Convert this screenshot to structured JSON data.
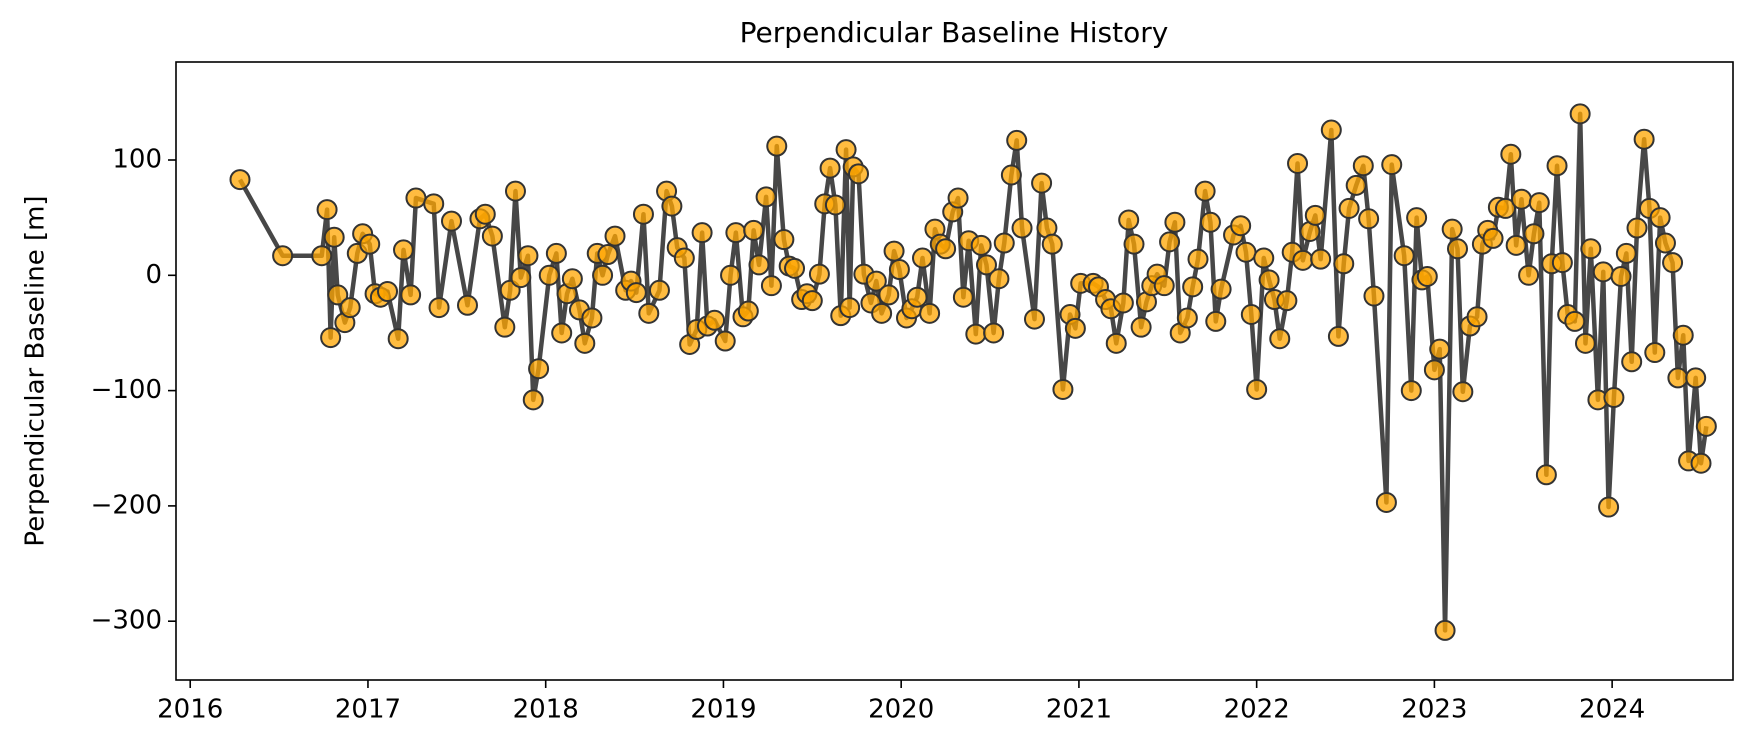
{
  "chart_data": {
    "type": "line",
    "title": "Perpendicular Baseline History",
    "y_label": "Perpendicular Baseline [m]",
    "color": "#333333",
    "marker_color": "#ffa500",
    "xlim": [
      2015.92,
      2024.68
    ],
    "xticks": [
      2016,
      2017,
      2018,
      2019,
      2020,
      2021,
      2022,
      2023,
      2024
    ],
    "ylim": [
      -351,
      185
    ],
    "yticks": [
      {
        "value": -300,
        "label": "−300"
      },
      {
        "value": -200,
        "label": "−200"
      },
      {
        "value": -100,
        "label": "−100"
      },
      0,
      100
    ],
    "x": [
      2016.28,
      2016.52,
      2016.74,
      2016.77,
      2016.79,
      2016.81,
      2016.83,
      2016.87,
      2016.9,
      2016.94,
      2016.97,
      2017.01,
      2017.04,
      2017.07,
      2017.11,
      2017.17,
      2017.2,
      2017.24,
      2017.27,
      2017.37,
      2017.4,
      2017.47,
      2017.56,
      2017.63,
      2017.66,
      2017.7,
      2017.77,
      2017.8,
      2017.83,
      2017.86,
      2017.9,
      2017.93,
      2017.96,
      2018.02,
      2018.06,
      2018.09,
      2018.12,
      2018.15,
      2018.19,
      2018.22,
      2018.26,
      2018.29,
      2018.32,
      2018.35,
      2018.39,
      2018.45,
      2018.48,
      2018.51,
      2018.55,
      2018.58,
      2018.64,
      2018.68,
      2018.71,
      2018.74,
      2018.78,
      2018.81,
      2018.85,
      2018.88,
      2018.91,
      2018.95,
      2019.01,
      2019.04,
      2019.07,
      2019.11,
      2019.14,
      2019.17,
      2019.2,
      2019.24,
      2019.27,
      2019.3,
      2019.34,
      2019.37,
      2019.4,
      2019.44,
      2019.47,
      2019.5,
      2019.54,
      2019.57,
      2019.6,
      2019.63,
      2019.66,
      2019.69,
      2019.71,
      2019.73,
      2019.76,
      2019.79,
      2019.83,
      2019.86,
      2019.89,
      2019.93,
      2019.96,
      2019.99,
      2020.03,
      2020.06,
      2020.09,
      2020.12,
      2020.16,
      2020.19,
      2020.22,
      2020.25,
      2020.29,
      2020.32,
      2020.35,
      2020.38,
      2020.42,
      2020.45,
      2020.48,
      2020.52,
      2020.55,
      2020.58,
      2020.62,
      2020.65,
      2020.68,
      2020.75,
      2020.79,
      2020.82,
      2020.85,
      2020.91,
      2020.95,
      2020.98,
      2021.01,
      2021.08,
      2021.11,
      2021.15,
      2021.18,
      2021.21,
      2021.25,
      2021.28,
      2021.31,
      2021.35,
      2021.38,
      2021.41,
      2021.44,
      2021.48,
      2021.51,
      2021.54,
      2021.57,
      2021.61,
      2021.64,
      2021.67,
      2021.71,
      2021.74,
      2021.77,
      2021.8,
      2021.87,
      2021.91,
      2021.94,
      2021.97,
      2022.0,
      2022.04,
      2022.07,
      2022.1,
      2022.13,
      2022.17,
      2022.2,
      2022.23,
      2022.26,
      2022.3,
      2022.33,
      2022.36,
      2022.42,
      2022.46,
      2022.49,
      2022.52,
      2022.56,
      2022.6,
      2022.63,
      2022.66,
      2022.73,
      2022.76,
      2022.83,
      2022.87,
      2022.9,
      2022.93,
      2022.96,
      2023.0,
      2023.03,
      2023.06,
      2023.1,
      2023.13,
      2023.16,
      2023.2,
      2023.24,
      2023.27,
      2023.3,
      2023.33,
      2023.36,
      2023.4,
      2023.43,
      2023.46,
      2023.49,
      2023.53,
      2023.56,
      2023.59,
      2023.63,
      2023.66,
      2023.69,
      2023.72,
      2023.75,
      2023.79,
      2023.82,
      2023.85,
      2023.88,
      2023.92,
      2023.95,
      2023.98,
      2024.01,
      2024.05,
      2024.08,
      2024.11,
      2024.14,
      2024.18,
      2024.21,
      2024.24,
      2024.27,
      2024.3,
      2024.34,
      2024.37,
      2024.4,
      2024.43,
      2024.47,
      2024.5,
      2024.53
    ],
    "values": [
      83,
      17,
      17,
      57,
      -54,
      33,
      -17,
      -41,
      -28,
      19,
      36,
      27,
      -16,
      -19,
      -14,
      -55,
      22,
      -17,
      67,
      62,
      -28,
      47,
      -26,
      49,
      53,
      34,
      -45,
      -13,
      73,
      -2,
      17,
      -108,
      -81,
      0,
      19,
      -50,
      -16,
      -3,
      -30,
      -59,
      -37,
      19,
      0,
      18,
      34,
      -13,
      -5,
      -15,
      53,
      -33,
      -13,
      73,
      60,
      24,
      15,
      -60,
      -47,
      37,
      -44,
      -39,
      -57,
      0,
      37,
      -36,
      -31,
      39,
      9,
      68,
      -9,
      112,
      31,
      8,
      6,
      -21,
      -16,
      -22,
      1,
      62,
      93,
      61,
      -35,
      109,
      -28,
      94,
      88,
      1,
      -24,
      -5,
      -33,
      -17,
      21,
      5,
      -37,
      -29,
      -19,
      15,
      -33,
      40,
      27,
      23,
      55,
      67,
      -19,
      30,
      -51,
      26,
      9,
      -50,
      -3,
      28,
      87,
      117,
      41,
      -38,
      80,
      41,
      27,
      -99,
      -34,
      -46,
      -7,
      -7,
      -10,
      -21,
      -29,
      -59,
      -24,
      48,
      27,
      -45,
      -23,
      -9,
      1,
      -9,
      29,
      46,
      -50,
      -37,
      -10,
      14,
      73,
      46,
      -40,
      -12,
      35,
      43,
      20,
      -34,
      -99,
      15,
      -4,
      -21,
      -55,
      -22,
      20,
      97,
      13,
      38,
      52,
      14,
      126,
      -53,
      10,
      58,
      78,
      95,
      49,
      -18,
      -197,
      96,
      17,
      -100,
      50,
      -4,
      -1,
      -82,
      -64,
      -308,
      40,
      23,
      -101,
      -44,
      -36,
      27,
      39,
      32,
      59,
      58,
      105,
      26,
      66,
      0,
      36,
      63,
      -173,
      10,
      95,
      11,
      -34,
      -40,
      140,
      -59,
      23,
      -108,
      3,
      -201,
      -106,
      -1,
      19,
      -75,
      41,
      118,
      58,
      -67,
      50,
      28,
      11,
      -89,
      -52,
      -161,
      -89,
      -163,
      -131
    ]
  }
}
